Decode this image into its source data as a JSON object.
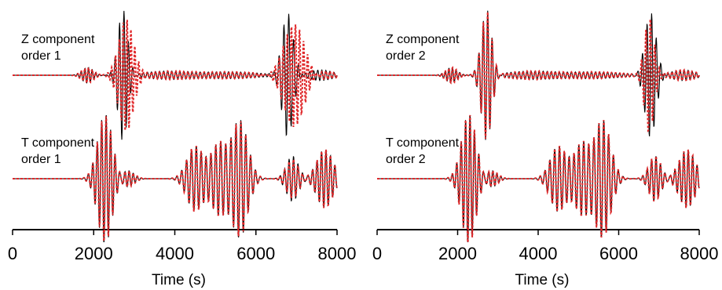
{
  "chart_data": [
    {
      "type": "line",
      "xlabel": "Time (s)",
      "xlim": [
        0,
        8000
      ],
      "x_ticks": [
        "0",
        "2000",
        "4000",
        "6000",
        "8000"
      ],
      "traces": [
        {
          "label_line1": "Z component",
          "label_line2": "order 1",
          "trace_type": "seismogram",
          "series": [
            {
              "color": "#000000",
              "style": "solid",
              "wavelets": [
                {
                  "t": 1850,
                  "amp": 0.12,
                  "period": 90,
                  "width": 140
                },
                {
                  "t": 2720,
                  "amp": 1.0,
                  "period": 110,
                  "width": 120
                },
                {
                  "t": 3800,
                  "amp": 0.06,
                  "period": 100,
                  "width": 600
                },
                {
                  "t": 5400,
                  "amp": 0.05,
                  "period": 100,
                  "width": 700
                },
                {
                  "t": 6780,
                  "amp": 0.95,
                  "period": 120,
                  "width": 140
                },
                {
                  "t": 7600,
                  "amp": 0.08,
                  "period": 100,
                  "width": 300
                }
              ]
            },
            {
              "color": "#e0292b",
              "style": "dotted",
              "wavelets": [
                {
                  "t": 1850,
                  "amp": 0.12,
                  "period": 90,
                  "width": 140
                },
                {
                  "t": 2800,
                  "amp": 0.85,
                  "period": 95,
                  "width": 180
                },
                {
                  "t": 3800,
                  "amp": 0.06,
                  "period": 100,
                  "width": 600
                },
                {
                  "t": 5400,
                  "amp": 0.05,
                  "period": 100,
                  "width": 700
                },
                {
                  "t": 6950,
                  "amp": 0.8,
                  "period": 100,
                  "width": 260
                },
                {
                  "t": 7600,
                  "amp": 0.08,
                  "period": 100,
                  "width": 300
                }
              ]
            }
          ]
        },
        {
          "label_line1": "T component",
          "label_line2": "order 1",
          "trace_type": "seismogram",
          "series": [
            {
              "color": "#000000",
              "style": "solid",
              "wavelets": [
                {
                  "t": 2280,
                  "amp": 1.0,
                  "period": 110,
                  "width": 180
                },
                {
                  "t": 2850,
                  "amp": 0.12,
                  "period": 100,
                  "width": 150
                },
                {
                  "t": 4500,
                  "amp": 0.5,
                  "period": 120,
                  "width": 200
                },
                {
                  "t": 5100,
                  "amp": 0.55,
                  "period": 120,
                  "width": 200
                },
                {
                  "t": 5600,
                  "amp": 0.9,
                  "period": 120,
                  "width": 200
                },
                {
                  "t": 6900,
                  "amp": 0.35,
                  "period": 110,
                  "width": 150
                },
                {
                  "t": 7700,
                  "amp": 0.45,
                  "period": 110,
                  "width": 200
                }
              ]
            },
            {
              "color": "#e0292b",
              "style": "dotted",
              "wavelets": [
                {
                  "t": 2280,
                  "amp": 0.98,
                  "period": 110,
                  "width": 180
                },
                {
                  "t": 2850,
                  "amp": 0.12,
                  "period": 100,
                  "width": 150
                },
                {
                  "t": 4500,
                  "amp": 0.5,
                  "period": 120,
                  "width": 200
                },
                {
                  "t": 5100,
                  "amp": 0.55,
                  "period": 120,
                  "width": 200
                },
                {
                  "t": 5600,
                  "amp": 0.88,
                  "period": 120,
                  "width": 200
                },
                {
                  "t": 6900,
                  "amp": 0.3,
                  "period": 110,
                  "width": 150
                },
                {
                  "t": 7700,
                  "amp": 0.45,
                  "period": 110,
                  "width": 200
                }
              ]
            }
          ]
        }
      ]
    },
    {
      "type": "line",
      "xlabel": "Time (s)",
      "xlim": [
        0,
        8000
      ],
      "x_ticks": [
        "0",
        "2000",
        "4000",
        "6000",
        "8000"
      ],
      "traces": [
        {
          "label_line1": "Z component",
          "label_line2": "order 2",
          "trace_type": "seismogram",
          "series": [
            {
              "color": "#000000",
              "style": "solid",
              "wavelets": [
                {
                  "t": 1850,
                  "amp": 0.12,
                  "period": 90,
                  "width": 140
                },
                {
                  "t": 2720,
                  "amp": 1.0,
                  "period": 110,
                  "width": 130
                },
                {
                  "t": 3800,
                  "amp": 0.06,
                  "period": 100,
                  "width": 600
                },
                {
                  "t": 5400,
                  "amp": 0.05,
                  "period": 100,
                  "width": 700
                },
                {
                  "t": 6790,
                  "amp": 0.95,
                  "period": 115,
                  "width": 140
                },
                {
                  "t": 7600,
                  "amp": 0.08,
                  "period": 100,
                  "width": 300
                }
              ]
            },
            {
              "color": "#e0292b",
              "style": "dotted",
              "wavelets": [
                {
                  "t": 1850,
                  "amp": 0.12,
                  "period": 90,
                  "width": 140
                },
                {
                  "t": 2720,
                  "amp": 0.98,
                  "period": 110,
                  "width": 130
                },
                {
                  "t": 3800,
                  "amp": 0.06,
                  "period": 100,
                  "width": 600
                },
                {
                  "t": 5400,
                  "amp": 0.05,
                  "period": 100,
                  "width": 700
                },
                {
                  "t": 6760,
                  "amp": 0.9,
                  "period": 110,
                  "width": 120
                },
                {
                  "t": 7600,
                  "amp": 0.08,
                  "period": 100,
                  "width": 300
                }
              ]
            }
          ]
        },
        {
          "label_line1": "T component",
          "label_line2": "order 2",
          "trace_type": "seismogram",
          "series": [
            {
              "color": "#000000",
              "style": "solid",
              "wavelets": [
                {
                  "t": 2280,
                  "amp": 1.0,
                  "period": 110,
                  "width": 180
                },
                {
                  "t": 2850,
                  "amp": 0.12,
                  "period": 100,
                  "width": 150
                },
                {
                  "t": 4500,
                  "amp": 0.5,
                  "period": 120,
                  "width": 200
                },
                {
                  "t": 5100,
                  "amp": 0.55,
                  "period": 120,
                  "width": 200
                },
                {
                  "t": 5600,
                  "amp": 0.9,
                  "period": 120,
                  "width": 200
                },
                {
                  "t": 6900,
                  "amp": 0.35,
                  "period": 110,
                  "width": 150
                },
                {
                  "t": 7700,
                  "amp": 0.45,
                  "period": 110,
                  "width": 200
                }
              ]
            },
            {
              "color": "#e0292b",
              "style": "dotted",
              "wavelets": [
                {
                  "t": 2280,
                  "amp": 1.0,
                  "period": 110,
                  "width": 180
                },
                {
                  "t": 2850,
                  "amp": 0.12,
                  "period": 100,
                  "width": 150
                },
                {
                  "t": 4500,
                  "amp": 0.5,
                  "period": 120,
                  "width": 200
                },
                {
                  "t": 5100,
                  "amp": 0.55,
                  "period": 120,
                  "width": 200
                },
                {
                  "t": 5600,
                  "amp": 0.9,
                  "period": 120,
                  "width": 200
                },
                {
                  "t": 6900,
                  "amp": 0.35,
                  "period": 110,
                  "width": 150
                },
                {
                  "t": 7700,
                  "amp": 0.45,
                  "period": 110,
                  "width": 200
                }
              ]
            }
          ]
        }
      ]
    }
  ]
}
